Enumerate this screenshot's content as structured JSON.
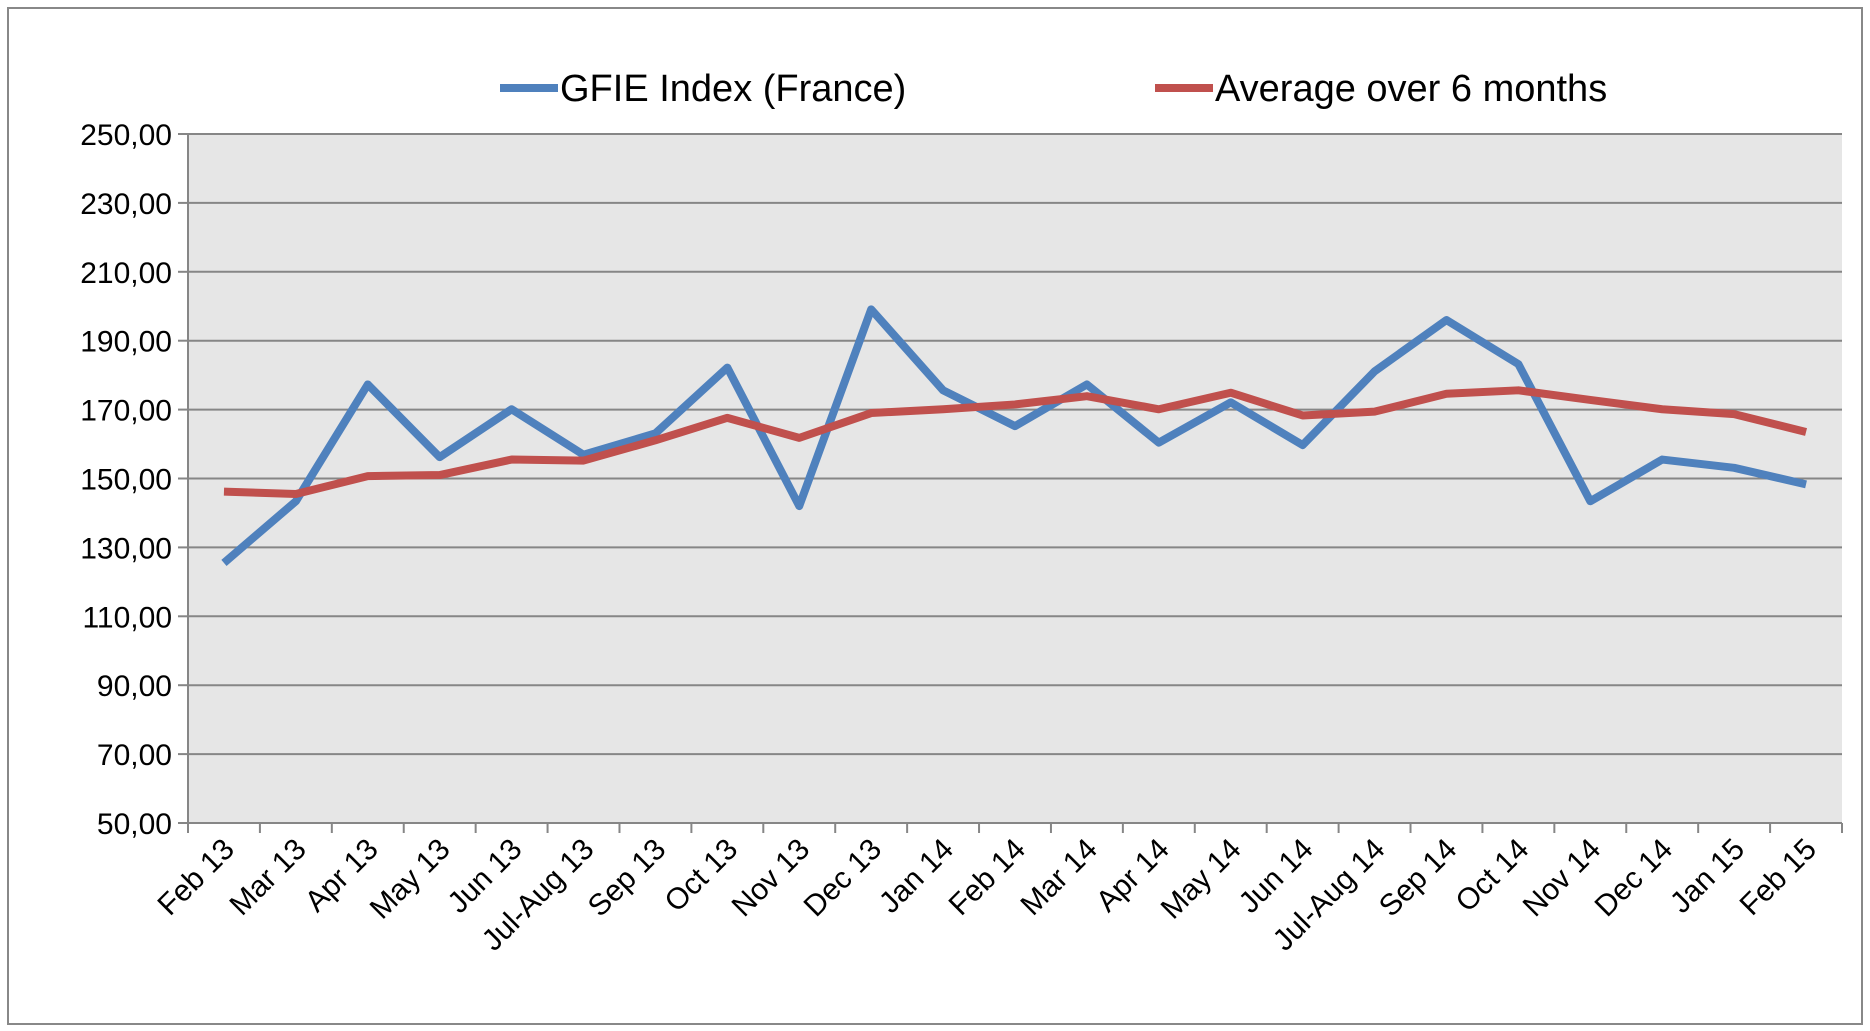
{
  "chart_data": {
    "type": "line",
    "categories": [
      "Feb 13",
      "Mar 13",
      "Apr 13",
      "May 13",
      "Jun 13",
      "Jul-Aug 13",
      "Sep 13",
      "Oct 13",
      "Nov 13",
      "Dec 13",
      "Jan 14",
      "Feb 14",
      "Mar 14",
      "Apr 14",
      "May 14",
      "Jun 14",
      "Jul-Aug 14",
      "Sep 14",
      "Oct 14",
      "Nov 14",
      "Dec 14",
      "Jan 15",
      "Feb 15"
    ],
    "series": [
      {
        "name": "GFIE Index (France)",
        "color": "#4f81bd",
        "values": [
          125.5,
          143.4,
          177.3,
          156.2,
          170.1,
          156.9,
          163.1,
          182.2,
          142.0,
          199.1,
          175.6,
          165.2,
          177.3,
          160.4,
          172.1,
          159.7,
          181.1,
          196.0,
          183.2,
          143.4,
          155.5,
          153.1,
          148.3
        ]
      },
      {
        "name": "Average over 6 months",
        "color": "#c0504d",
        "values": [
          146.2,
          145.5,
          150.7,
          151.0,
          155.5,
          155.2,
          161.1,
          167.6,
          161.8,
          169.0,
          170.1,
          171.5,
          173.9,
          170.1,
          174.9,
          168.3,
          169.4,
          174.6,
          175.6,
          172.8,
          170.1,
          168.7,
          163.5
        ]
      }
    ],
    "ylim": [
      50,
      250
    ],
    "yticks": [
      {
        "value": 50,
        "label": "50,00"
      },
      {
        "value": 70,
        "label": "70,00"
      },
      {
        "value": 90,
        "label": "90,00"
      },
      {
        "value": 110,
        "label": "110,00"
      },
      {
        "value": 130,
        "label": "130,00"
      },
      {
        "value": 150,
        "label": "150,00"
      },
      {
        "value": 170,
        "label": "170,00"
      },
      {
        "value": 190,
        "label": "190,00"
      },
      {
        "value": 210,
        "label": "210,00"
      },
      {
        "value": 230,
        "label": "230,00"
      },
      {
        "value": 250,
        "label": "250,00"
      }
    ],
    "grid": true,
    "legend": "top"
  }
}
